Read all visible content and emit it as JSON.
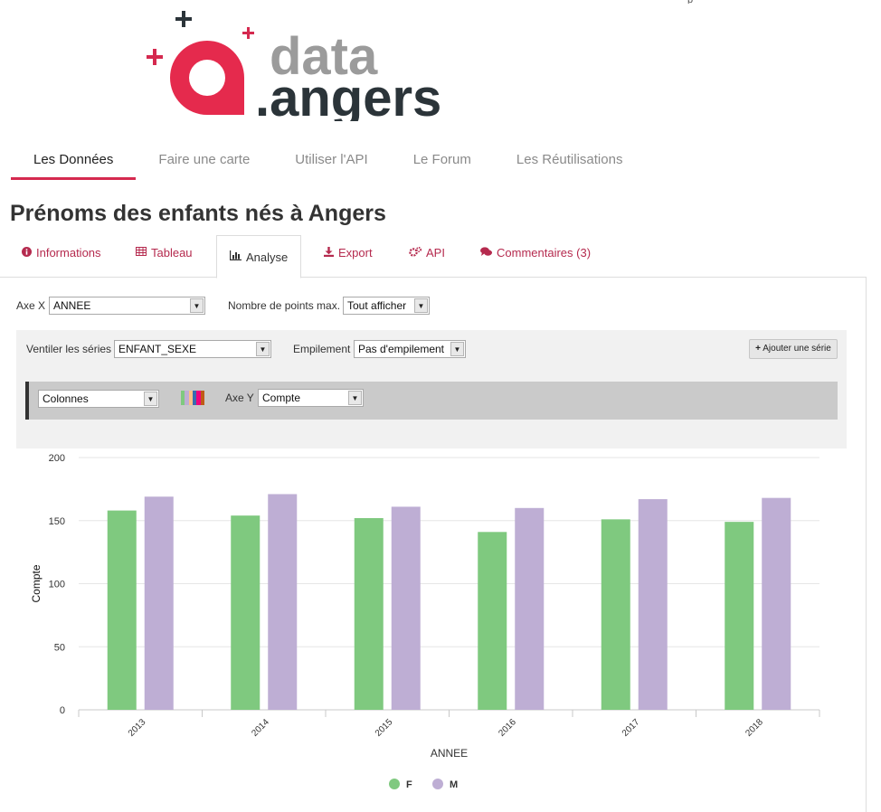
{
  "header": {
    "logo_text_top": "data",
    "logo_text_bottom": ".angers",
    "top_strip_text": "p"
  },
  "nav": {
    "items": [
      {
        "label": "Les Données",
        "active": true
      },
      {
        "label": "Faire une carte"
      },
      {
        "label": "Utiliser l'API"
      },
      {
        "label": "Le Forum"
      },
      {
        "label": "Les Réutilisations"
      }
    ]
  },
  "page": {
    "title": "Prénoms des enfants nés à Angers"
  },
  "tabs": {
    "informations": "Informations",
    "tableau": "Tableau",
    "analyse": "Analyse",
    "export": "Export",
    "api": "API",
    "commentaires": "Commentaires (3)"
  },
  "controls": {
    "axe_x_label": "Axe X",
    "axe_x_value": "ANNEE",
    "max_points_label": "Nombre de points max.",
    "max_points_value": "Tout afficher",
    "ventiler_label": "Ventiler les séries",
    "ventiler_value": "ENFANT_SEXE",
    "empilement_label": "Empilement",
    "empilement_value": "Pas d'empilement",
    "add_series_label": "Ajouter une série",
    "chart_type_value": "Colonnes",
    "axe_y_label": "Axe Y",
    "axe_y_value": "Compte",
    "palette_colors": [
      "#7fc97f",
      "#beaed4",
      "#fdc086",
      "#386cb0",
      "#f0027f",
      "#bf5b17"
    ]
  },
  "chart_data": {
    "type": "bar",
    "categories": [
      "2013",
      "2014",
      "2015",
      "2016",
      "2017",
      "2018"
    ],
    "series": [
      {
        "name": "F",
        "color": "#7fc97f",
        "values": [
          158,
          154,
          152,
          141,
          151,
          149
        ]
      },
      {
        "name": "M",
        "color": "#beaed4",
        "values": [
          169,
          171,
          161,
          160,
          167,
          168
        ]
      }
    ],
    "xlabel": "ANNEE",
    "ylabel": "Compte",
    "ylim": [
      0,
      200
    ],
    "yticks": [
      0,
      50,
      100,
      150,
      200
    ],
    "grid": true,
    "legend": "bottom-center"
  }
}
